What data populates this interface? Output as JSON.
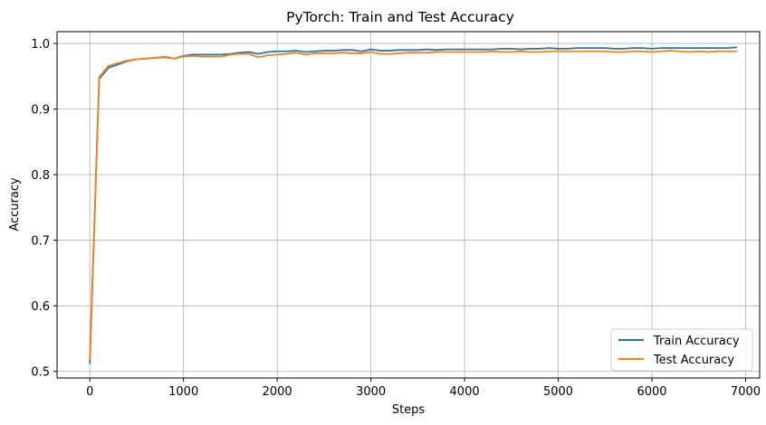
{
  "chart_data": {
    "type": "line",
    "title": "PyTorch: Train and Test Accuracy",
    "xlabel": "Steps",
    "ylabel": "Accuracy",
    "xlim": [
      -350,
      7150
    ],
    "ylim": [
      0.49,
      1.018
    ],
    "xticks": [
      0,
      1000,
      2000,
      3000,
      4000,
      5000,
      6000,
      7000
    ],
    "yticks": [
      0.5,
      0.6,
      0.7,
      0.8,
      0.9,
      1.0
    ],
    "xtick_labels": [
      "0",
      "1000",
      "2000",
      "3000",
      "4000",
      "5000",
      "6000",
      "7000"
    ],
    "ytick_labels": [
      "0.5",
      "0.6",
      "0.7",
      "0.8",
      "0.9",
      "1.0"
    ],
    "grid": true,
    "legend_position": "lower-right",
    "x": [
      0,
      100,
      200,
      300,
      400,
      500,
      600,
      700,
      800,
      900,
      1000,
      1100,
      1200,
      1300,
      1400,
      1500,
      1600,
      1700,
      1800,
      1900,
      2000,
      2100,
      2200,
      2300,
      2400,
      2500,
      2600,
      2700,
      2800,
      2900,
      3000,
      3100,
      3200,
      3300,
      3400,
      3500,
      3600,
      3700,
      3800,
      3900,
      4000,
      4100,
      4200,
      4300,
      4400,
      4500,
      4600,
      4700,
      4800,
      4900,
      5000,
      5100,
      5200,
      5300,
      5400,
      5500,
      5600,
      5700,
      5800,
      5900,
      6000,
      6100,
      6200,
      6300,
      6400,
      6500,
      6600,
      6700,
      6800,
      6900
    ],
    "series": [
      {
        "name": "Train Accuracy",
        "color": "#1f77b4",
        "values": [
          0.513,
          0.946,
          0.963,
          0.968,
          0.973,
          0.976,
          0.977,
          0.978,
          0.979,
          0.977,
          0.981,
          0.983,
          0.983,
          0.983,
          0.983,
          0.984,
          0.986,
          0.987,
          0.984,
          0.987,
          0.988,
          0.988,
          0.989,
          0.987,
          0.988,
          0.989,
          0.989,
          0.99,
          0.99,
          0.988,
          0.991,
          0.989,
          0.989,
          0.99,
          0.99,
          0.99,
          0.991,
          0.99,
          0.991,
          0.991,
          0.991,
          0.991,
          0.991,
          0.991,
          0.992,
          0.992,
          0.991,
          0.992,
          0.992,
          0.993,
          0.992,
          0.992,
          0.993,
          0.993,
          0.993,
          0.993,
          0.992,
          0.992,
          0.993,
          0.993,
          0.992,
          0.993,
          0.993,
          0.993,
          0.993,
          0.993,
          0.993,
          0.993,
          0.993,
          0.994
        ]
      },
      {
        "name": "Test Accuracy",
        "color": "#ff7f0e",
        "values": [
          0.519,
          0.949,
          0.966,
          0.97,
          0.974,
          0.976,
          0.977,
          0.978,
          0.98,
          0.977,
          0.98,
          0.981,
          0.98,
          0.98,
          0.98,
          0.983,
          0.984,
          0.984,
          0.979,
          0.982,
          0.983,
          0.984,
          0.986,
          0.983,
          0.985,
          0.985,
          0.985,
          0.986,
          0.985,
          0.985,
          0.987,
          0.984,
          0.984,
          0.985,
          0.986,
          0.986,
          0.986,
          0.987,
          0.987,
          0.987,
          0.987,
          0.987,
          0.987,
          0.988,
          0.987,
          0.987,
          0.988,
          0.987,
          0.987,
          0.988,
          0.988,
          0.988,
          0.988,
          0.988,
          0.988,
          0.988,
          0.987,
          0.987,
          0.988,
          0.988,
          0.987,
          0.988,
          0.989,
          0.988,
          0.987,
          0.988,
          0.987,
          0.988,
          0.988,
          0.988
        ]
      }
    ]
  }
}
